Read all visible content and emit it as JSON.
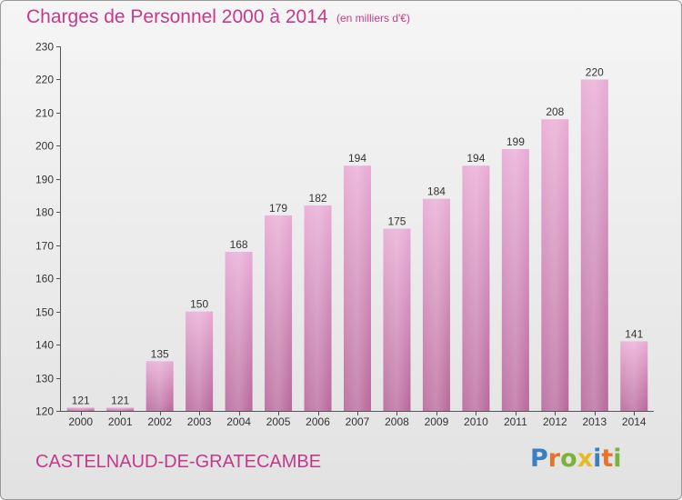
{
  "chart_data": {
    "type": "bar",
    "title": "Charges de Personnel 2000 à 2014",
    "subtitle": "(en milliers d'€)",
    "categories": [
      "2000",
      "2001",
      "2002",
      "2003",
      "2004",
      "2005",
      "2006",
      "2007",
      "2008",
      "2009",
      "2010",
      "2011",
      "2012",
      "2013",
      "2014"
    ],
    "values": [
      121,
      121,
      135,
      150,
      168,
      179,
      182,
      194,
      175,
      184,
      194,
      199,
      208,
      220,
      141
    ],
    "ylim": [
      120,
      230
    ],
    "yticks": [
      120,
      130,
      140,
      150,
      160,
      170,
      180,
      190,
      200,
      210,
      220,
      230
    ],
    "grid": false,
    "legend": "none",
    "bar_color": "#d68fbd"
  },
  "footer": {
    "location": "CASTELNAUD-DE-GRATECAMBE"
  },
  "logo": {
    "text": "Proxiti",
    "letters": [
      {
        "char": "P",
        "color": "#3a7fc1"
      },
      {
        "char": "r",
        "color": "#e8732a"
      },
      {
        "char": "o",
        "color": "#7bb33a"
      },
      {
        "char": "x",
        "color": "#e6b925"
      },
      {
        "char": "i",
        "color": "#3a7fc1"
      },
      {
        "char": "t",
        "color": "#e8732a"
      },
      {
        "char": "i",
        "color": "#7bb33a"
      }
    ]
  },
  "colors": {
    "accent": "#c23b8a",
    "bar": "#d68fbd",
    "bar_dark": "#b7679a"
  }
}
